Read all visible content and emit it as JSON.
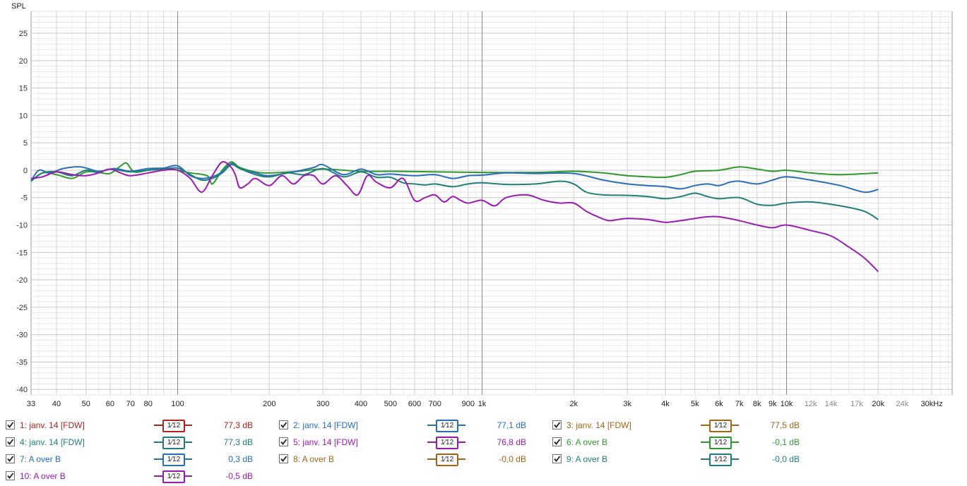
{
  "chart_data": {
    "type": "line",
    "title": "",
    "ylabel": "SPL",
    "xlabel": "",
    "x_scale": "log",
    "xlim": [
      33,
      35000
    ],
    "ylim": [
      -41,
      29
    ],
    "grid": true,
    "y_ticks": [
      25,
      20,
      15,
      10,
      5,
      0,
      -5,
      -10,
      -15,
      -20,
      -25,
      -30,
      -35,
      -40
    ],
    "x_ticks": [
      {
        "v": 33,
        "label": "33"
      },
      {
        "v": 40,
        "label": "40"
      },
      {
        "v": 50,
        "label": "50"
      },
      {
        "v": 60,
        "label": "60"
      },
      {
        "v": 70,
        "label": "70"
      },
      {
        "v": 80,
        "label": "80"
      },
      {
        "v": 100,
        "label": "100"
      },
      {
        "v": 200,
        "label": "200"
      },
      {
        "v": 300,
        "label": "300"
      },
      {
        "v": 400,
        "label": "400"
      },
      {
        "v": 500,
        "label": "500"
      },
      {
        "v": 600,
        "label": "600"
      },
      {
        "v": 700,
        "label": "700"
      },
      {
        "v": 900,
        "label": "900"
      },
      {
        "v": 1000,
        "label": "1k"
      },
      {
        "v": 2000,
        "label": "2k"
      },
      {
        "v": 3000,
        "label": "3k"
      },
      {
        "v": 4000,
        "label": "4k"
      },
      {
        "v": 5000,
        "label": "5k"
      },
      {
        "v": 6000,
        "label": "6k"
      },
      {
        "v": 7000,
        "label": "7k"
      },
      {
        "v": 8000,
        "label": "8k"
      },
      {
        "v": 9000,
        "label": "9k"
      },
      {
        "v": 10000,
        "label": "10k"
      },
      {
        "v": 12000,
        "label": "12k",
        "muted": true
      },
      {
        "v": 14000,
        "label": "14k",
        "muted": true
      },
      {
        "v": 17000,
        "label": "17k",
        "muted": true
      },
      {
        "v": 20000,
        "label": "20k"
      },
      {
        "v": 24000,
        "label": "24k",
        "muted": true
      },
      {
        "v": 30000,
        "label": "30kHz"
      }
    ],
    "series": [
      {
        "name": "6: A over B",
        "color": "#2e9a2e",
        "x": [
          33,
          36,
          40,
          45,
          50,
          55,
          60,
          65,
          68,
          72,
          80,
          90,
          100,
          110,
          125,
          130,
          140,
          150,
          160,
          180,
          200,
          250,
          300,
          400,
          500,
          700,
          1000,
          1500,
          2000,
          2500,
          3000,
          3500,
          4000,
          4500,
          5000,
          6000,
          7000,
          8000,
          9000,
          10000,
          12000,
          15000,
          20000
        ],
        "y": [
          -2,
          -0.5,
          -0.8,
          -1.5,
          -0.3,
          -0.4,
          -0.6,
          0.8,
          1.3,
          -0.3,
          0,
          0.3,
          0,
          -0.5,
          -1,
          -2.5,
          0,
          1.5,
          0.5,
          -0.3,
          -0.5,
          -0.2,
          0.2,
          -0.2,
          -0.2,
          -0.3,
          -0.4,
          -0.4,
          -0.2,
          -0.5,
          -1,
          -1.2,
          -1.3,
          -0.8,
          -0.2,
          0,
          0.6,
          0.2,
          -0.2,
          0,
          -0.5,
          -0.8,
          -0.5
        ]
      },
      {
        "name": "2: janv. 14 [FDW]",
        "color": "#2a6ebb",
        "x": [
          33,
          35,
          38,
          42,
          48,
          55,
          62,
          70,
          80,
          90,
          100,
          110,
          120,
          130,
          140,
          150,
          160,
          180,
          200,
          240,
          280,
          300,
          350,
          400,
          450,
          500,
          600,
          700,
          800,
          900,
          1000,
          1200,
          1500,
          2000,
          2500,
          3000,
          3500,
          4000,
          4500,
          5000,
          5500,
          6000,
          6500,
          7000,
          8000,
          9000,
          10000,
          12000,
          15000,
          18000,
          20000
        ],
        "y": [
          -2,
          0,
          -0.5,
          0.3,
          0.6,
          -0.2,
          0.3,
          -0.2,
          0.3,
          0.4,
          0.8,
          -1,
          -1.5,
          -1.2,
          -0.3,
          1.2,
          0.3,
          -0.5,
          -1,
          -0.3,
          0.5,
          1,
          -0.8,
          0.2,
          -0.8,
          -0.7,
          -1,
          -0.8,
          -1.5,
          -1,
          -0.9,
          -0.5,
          -0.6,
          -0.6,
          -1.8,
          -2.5,
          -2.8,
          -3,
          -3.4,
          -2.8,
          -2.5,
          -2.8,
          -2.2,
          -2,
          -2.5,
          -1.8,
          -1.2,
          -1.8,
          -2.8,
          -4,
          -3.5
        ]
      },
      {
        "name": "9: A over B",
        "color": "#1f7f7a",
        "x": [
          33,
          36,
          40,
          45,
          50,
          55,
          60,
          70,
          80,
          90,
          100,
          110,
          120,
          130,
          140,
          150,
          160,
          180,
          200,
          230,
          260,
          300,
          350,
          400,
          450,
          500,
          550,
          600,
          650,
          700,
          800,
          900,
          1000,
          1200,
          1500,
          1800,
          2000,
          2200,
          2500,
          3000,
          3500,
          4000,
          4500,
          5000,
          5500,
          6000,
          7000,
          8000,
          9000,
          10000,
          12000,
          15000,
          18000,
          20000
        ],
        "y": [
          -2,
          -0.5,
          -0.3,
          -1,
          0,
          -0.4,
          0.2,
          -0.3,
          0,
          0.2,
          0.4,
          -0.8,
          -1.8,
          -1.5,
          -0.5,
          1,
          0.3,
          -0.8,
          -1.2,
          -0.5,
          -0.8,
          0.3,
          -1.2,
          -0.3,
          -1.3,
          -1.3,
          -2.3,
          -2.5,
          -2.7,
          -2.5,
          -3,
          -2.5,
          -2.3,
          -2.6,
          -2.5,
          -2,
          -2.5,
          -4,
          -4.5,
          -4.6,
          -4.8,
          -5.2,
          -4.8,
          -4.2,
          -4.8,
          -5.2,
          -5,
          -6.2,
          -6.4,
          -6,
          -5.8,
          -6.5,
          -7.5,
          -9
        ]
      },
      {
        "name": "5: janv. 14 [FDW]",
        "color": "#9a1ab3",
        "x": [
          33,
          36,
          40,
          45,
          50,
          55,
          60,
          65,
          70,
          80,
          90,
          100,
          110,
          120,
          130,
          140,
          150,
          155,
          160,
          170,
          180,
          200,
          220,
          240,
          260,
          280,
          300,
          330,
          360,
          390,
          420,
          450,
          500,
          550,
          600,
          650,
          700,
          750,
          800,
          850,
          900,
          1000,
          1100,
          1200,
          1400,
          1600,
          1800,
          2000,
          2200,
          2400,
          2600,
          2800,
          3000,
          3500,
          4000,
          4500,
          5000,
          5500,
          6000,
          7000,
          8000,
          9000,
          10000,
          12000,
          14000,
          16000,
          18000,
          20000
        ],
        "y": [
          -1.5,
          -1.2,
          -0.3,
          -0.8,
          -1,
          -0.5,
          0.2,
          -0.5,
          -1,
          -0.5,
          0,
          0,
          -1.5,
          -4,
          -1,
          1.5,
          0.5,
          -1,
          -3.2,
          -2.5,
          -1.5,
          -2.8,
          -1,
          -2.5,
          -1,
          -1,
          -2.5,
          -1,
          -2.8,
          -4.5,
          -1,
          -2.2,
          -3.2,
          -1.5,
          -5.5,
          -5,
          -4.5,
          -5.8,
          -4.8,
          -5.5,
          -6,
          -5.5,
          -6.5,
          -5,
          -4.5,
          -5.5,
          -6,
          -6,
          -7.5,
          -8.5,
          -9.2,
          -9,
          -8.8,
          -9,
          -9.5,
          -9.2,
          -8.8,
          -8.5,
          -8.5,
          -9.2,
          -10,
          -10.5,
          -10,
          -11,
          -12,
          -14,
          -16,
          -18.5
        ]
      }
    ]
  },
  "legend": [
    {
      "label": "1: janv. 14 [FDW]",
      "color": "#b22222",
      "smoothing": "1⁄12",
      "value": "77,3 dB"
    },
    {
      "label": "2: janv. 14 [FDW]",
      "color": "#2a6ebb",
      "smoothing": "1⁄12",
      "value": "77,1 dB"
    },
    {
      "label": "3: janv. 14 [FDW]",
      "color": "#a0661a",
      "smoothing": "1⁄12",
      "value": "77,5 dB"
    },
    {
      "label": "4: janv. 14 [FDW]",
      "color": "#1f7f7a",
      "smoothing": "1⁄12",
      "value": "77,3 dB"
    },
    {
      "label": "5: janv. 14 [FDW]",
      "color": "#9a1ab3",
      "smoothing": "1⁄12",
      "value": "76,8 dB"
    },
    {
      "label": "6: A over B",
      "color": "#2e9a2e",
      "smoothing": "1⁄12",
      "value": "-0,1 dB"
    },
    {
      "label": "7: A over B",
      "color": "#2a6ebb",
      "smoothing": "1⁄12",
      "value": "0,3 dB"
    },
    {
      "label": "8: A over B",
      "color": "#a0661a",
      "smoothing": "1⁄12",
      "value": "-0,0 dB"
    },
    {
      "label": "9: A over B",
      "color": "#1f7f7a",
      "smoothing": "1⁄12",
      "value": "-0,0 dB"
    },
    {
      "label": "10: A over B",
      "color": "#9a1ab3",
      "smoothing": "1⁄12",
      "value": "-0,5 dB"
    }
  ]
}
